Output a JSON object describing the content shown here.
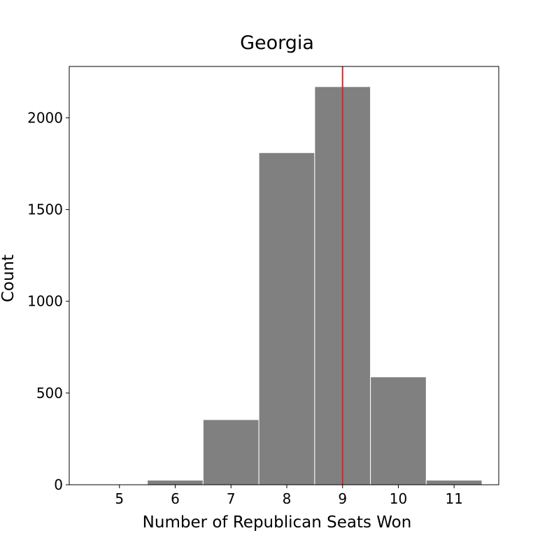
{
  "chart_data": {
    "type": "bar",
    "title": "Georgia",
    "xlabel": "Number of Republican Seats Won",
    "ylabel": "Count",
    "categories": [
      6,
      7,
      8,
      9,
      10,
      11
    ],
    "values": [
      25,
      355,
      1810,
      2170,
      588,
      25
    ],
    "xlim": [
      4.1,
      11.8
    ],
    "ylim": [
      0,
      2280
    ],
    "x_ticks": [
      "5",
      "6",
      "7",
      "8",
      "9",
      "10",
      "11"
    ],
    "y_ticks": [
      "0",
      "500",
      "1000",
      "1500",
      "2000"
    ],
    "reference_line": {
      "x": 9,
      "color": "#d62728"
    },
    "bar_color": "#808080",
    "grid": false
  }
}
